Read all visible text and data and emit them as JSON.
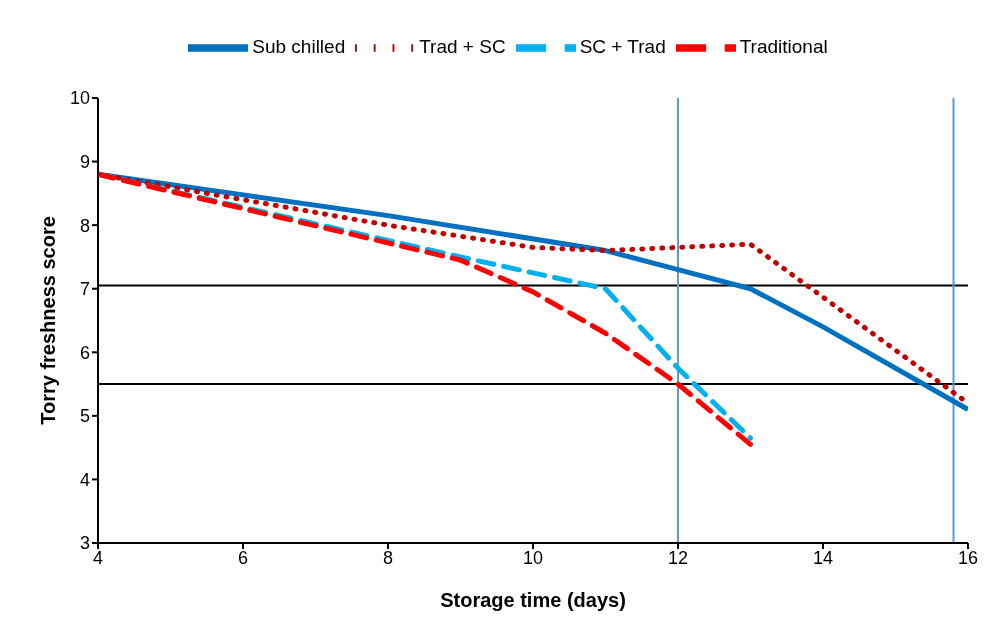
{
  "chart_data": {
    "type": "line",
    "xlabel": "Storage time (days)",
    "ylabel": "Torry freshness score",
    "xlim": [
      4,
      16
    ],
    "xticks": [
      4,
      6,
      8,
      10,
      12,
      14,
      16
    ],
    "ylim": [
      3,
      10
    ],
    "yticks": [
      3,
      4,
      5,
      6,
      7,
      8,
      9,
      10
    ],
    "grid": false,
    "legend": "top",
    "marker": "none",
    "series": [
      {
        "name": "Sub chilled",
        "color": "#0070c0",
        "line_style": "solid",
        "x": [
          4,
          8,
          11,
          12,
          13,
          14,
          16
        ],
        "values": [
          8.8,
          8.15,
          7.6,
          7.3,
          7.0,
          6.4,
          5.1
        ]
      },
      {
        "name": "Trad + SC",
        "color": "#c00000",
        "line_style": "dotted",
        "x": [
          4,
          8,
          10,
          11,
          12,
          13,
          16
        ],
        "values": [
          8.8,
          8.0,
          7.65,
          7.6,
          7.65,
          7.7,
          5.2
        ]
      },
      {
        "name": "SC + Trad",
        "color": "#00b0f0",
        "line_style": "dashed",
        "x": [
          4,
          9,
          10,
          11,
          12,
          13
        ],
        "values": [
          8.8,
          7.5,
          7.25,
          7.0,
          5.75,
          4.65
        ]
      },
      {
        "name": "Traditional",
        "color": "#ff0000",
        "line_style": "dashed",
        "x": [
          4,
          9,
          10,
          11,
          12,
          13
        ],
        "values": [
          8.8,
          7.45,
          6.95,
          6.3,
          5.5,
          4.55
        ]
      }
    ],
    "ref_lines": [
      {
        "axis": "y",
        "value": 7.05,
        "color": "#000000"
      },
      {
        "axis": "y",
        "value": 5.5,
        "color": "#000000"
      },
      {
        "axis": "x",
        "value": 12,
        "color": "#5b9bd5"
      },
      {
        "axis": "x",
        "value": 15.8,
        "color": "#5b9bd5"
      }
    ]
  }
}
